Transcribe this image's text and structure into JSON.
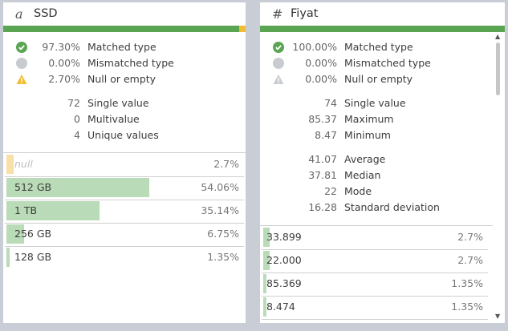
{
  "colors": {
    "matched": "#5aa552",
    "mismatched": "#c8ccd1",
    "null": "#f1bd34",
    "bar_value": "#b9dbb7",
    "bar_null": "#f9dfa8"
  },
  "panels": [
    {
      "type_icon": "a",
      "title": "SSD",
      "quality": {
        "matched_frac": 0.973,
        "mismatched_frac": 0.0,
        "null_frac": 0.027
      },
      "stats": [
        {
          "icon": "check-circle-icon",
          "value": "97.30%",
          "label": "Matched type"
        },
        {
          "icon": "mismatch-circle-icon",
          "value": "0.00%",
          "label": "Mismatched type"
        },
        {
          "icon": "warning-triangle-icon",
          "value": "2.70%",
          "label": "Null or empty"
        }
      ],
      "summary": [
        {
          "value": "72",
          "label": "Single value"
        },
        {
          "value": "0",
          "label": "Multivalue"
        },
        {
          "value": "4",
          "label": "Unique values"
        }
      ],
      "values": [
        {
          "label": "null",
          "pct": "2.7%",
          "frac": 0.027,
          "is_null": true
        },
        {
          "label": "512 GB",
          "pct": "54.06%",
          "frac": 0.5406
        },
        {
          "label": "1 TB",
          "pct": "35.14%",
          "frac": 0.3514
        },
        {
          "label": "256 GB",
          "pct": "6.75%",
          "frac": 0.0675
        },
        {
          "label": "128 GB",
          "pct": "1.35%",
          "frac": 0.0135
        }
      ]
    },
    {
      "type_icon": "#",
      "title": "Fiyat",
      "quality": {
        "matched_frac": 1.0,
        "mismatched_frac": 0.0,
        "null_frac": 0.0
      },
      "stats": [
        {
          "icon": "check-circle-icon",
          "value": "100.00%",
          "label": "Matched type"
        },
        {
          "icon": "mismatch-circle-icon",
          "value": "0.00%",
          "label": "Mismatched type"
        },
        {
          "icon": "warning-triangle-icon",
          "value": "0.00%",
          "label": "Null or empty"
        }
      ],
      "summary": [
        {
          "value": "74",
          "label": "Single value"
        },
        {
          "value": "85.37",
          "label": "Maximum"
        },
        {
          "value": "8.47",
          "label": "Minimum"
        },
        {
          "value": "41.07",
          "label": "Average"
        },
        {
          "value": "37.81",
          "label": "Median"
        },
        {
          "value": "22",
          "label": "Mode"
        },
        {
          "value": "16.28",
          "label": "Standard deviation"
        }
      ],
      "values": [
        {
          "label": "33.899",
          "pct": "2.7%",
          "frac": 0.027
        },
        {
          "label": "22.000",
          "pct": "2.7%",
          "frac": 0.027
        },
        {
          "label": "85.369",
          "pct": "1.35%",
          "frac": 0.0135
        },
        {
          "label": "8.474",
          "pct": "1.35%",
          "frac": 0.0135
        }
      ]
    }
  ]
}
